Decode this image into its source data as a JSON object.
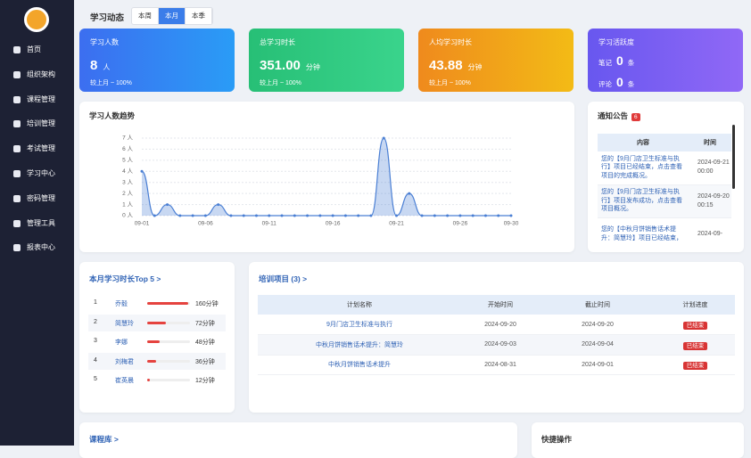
{
  "sidebar": {
    "menu": [
      "首页",
      "组织架构",
      "课程管理",
      "培训管理",
      "考试管理",
      "学习中心",
      "密码管理",
      "管理工具",
      "报表中心"
    ]
  },
  "header": {
    "title": "学习动态",
    "tabs": [
      "本周",
      "本月",
      "本季"
    ],
    "active_tab": 1
  },
  "stats": [
    {
      "title": "学习人数",
      "value": "8",
      "unit": "人",
      "compare": "较上月 ~ 100%"
    },
    {
      "title": "总学习时长",
      "value": "351.00",
      "unit": "分钟",
      "compare": "较上月 ~ 100%"
    },
    {
      "title": "人均学习时长",
      "value": "43.88",
      "unit": "分钟",
      "compare": "较上月 ~ 100%"
    },
    {
      "title": "学习活跃度",
      "items": [
        {
          "label": "笔记",
          "value": "0",
          "unit": "条"
        },
        {
          "label": "评论",
          "value": "0",
          "unit": "条"
        }
      ]
    }
  ],
  "chart_data": {
    "type": "area",
    "title": "学习人数趋势",
    "categories": [
      "09-01",
      null,
      null,
      null,
      null,
      "09-06",
      null,
      null,
      null,
      null,
      "09-11",
      null,
      null,
      null,
      null,
      "09-16",
      null,
      null,
      null,
      null,
      "09-21",
      null,
      null,
      null,
      null,
      "09-26",
      null,
      null,
      null,
      "09-30"
    ],
    "series": [
      {
        "name": "学习人数",
        "color": "#4a7fd4",
        "values": [
          4,
          0,
          1,
          0,
          0,
          0,
          1,
          0,
          0,
          0,
          0,
          0,
          0,
          0,
          0,
          0,
          0,
          0,
          0,
          7,
          0,
          2,
          0,
          0,
          0,
          0,
          0,
          0,
          0,
          0
        ]
      }
    ],
    "ylim": [
      0,
      7
    ],
    "yticks": [
      {
        "value": 0,
        "label": "0 人"
      },
      {
        "value": 1,
        "label": "1 人"
      },
      {
        "value": 2,
        "label": "2 人"
      },
      {
        "value": 3,
        "label": "3 人"
      },
      {
        "value": 4,
        "label": "4 人"
      },
      {
        "value": 5,
        "label": "5 人"
      },
      {
        "value": 6,
        "label": "6 人"
      },
      {
        "value": 7,
        "label": "7 人"
      }
    ],
    "grid": true
  },
  "notices": {
    "title": "通知公告",
    "count": 6,
    "columns": [
      "内容",
      "时间"
    ],
    "rows": [
      [
        "您的【9月门店卫生标准与执行】项目已经结束，点击查看项目的完成概况。",
        "2024-09-21 00:00"
      ],
      [
        "您的【9月门店卫生标准与执行】项目发布成功，点击查看项目概况。",
        "2024-09-20 00:15"
      ],
      [
        "您的【中秋月饼销售话术提升：简慧玲】项目已经结束，",
        "2024-09-"
      ]
    ]
  },
  "ranking": {
    "title": "本月学习时长Top 5 >",
    "rows": [
      {
        "rank": 1,
        "name": "乔毅",
        "minutes": 160,
        "label": "160分钟"
      },
      {
        "rank": 2,
        "name": "简慧玲",
        "minutes": 72,
        "label": "72分钟"
      },
      {
        "rank": 3,
        "name": "李娜",
        "minutes": 48,
        "label": "48分钟"
      },
      {
        "rank": 4,
        "name": "刘梅君",
        "minutes": 36,
        "label": "36分钟"
      },
      {
        "rank": 5,
        "name": "崔英晨",
        "minutes": 12,
        "label": "12分钟"
      }
    ]
  },
  "projects": {
    "title": "培训项目 (3) >",
    "columns": [
      "计划名称",
      "开始时间",
      "截止时间",
      "计划进度"
    ],
    "rows": [
      [
        "9月门店卫生标准与执行",
        "2024-09-20",
        "2024-09-20",
        "已结束"
      ],
      [
        "中秋月饼销售话术提升：简慧玲",
        "2024-09-03",
        "2024-09-04",
        "已结束"
      ],
      [
        "中秋月饼销售话术提升",
        "2024-08-31",
        "2024-09-01",
        "已结束"
      ]
    ]
  },
  "courses": {
    "title": "课程库 >"
  },
  "quick_actions": {
    "title": "快捷操作"
  }
}
